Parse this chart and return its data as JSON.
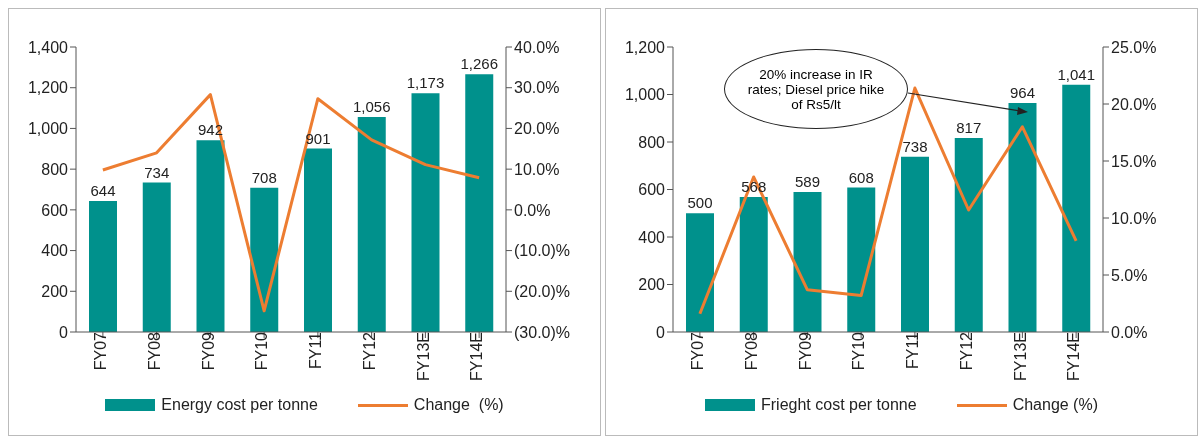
{
  "chart_data": [
    {
      "type": "bar",
      "categories": [
        "FY07",
        "FY08",
        "FY09",
        "FY10",
        "FY11",
        "FY12",
        "FY13E",
        "FY14E"
      ],
      "series": [
        {
          "name": "Energy cost per tonne",
          "color": "#00918c",
          "values": [
            644,
            734,
            942,
            708,
            901,
            1056,
            1173,
            1266
          ],
          "value_labels": [
            "644",
            "734",
            "942",
            "708",
            "901",
            "1,056",
            "1,173",
            "1,266"
          ]
        },
        {
          "name": "Change  (%)",
          "type": "line",
          "axis": "y2",
          "color": "#ed7d31",
          "values": [
            9.8,
            14.0,
            28.3,
            -24.8,
            27.3,
            17.2,
            11.1,
            7.9
          ]
        }
      ],
      "ylim": [
        0,
        1400
      ],
      "yticks": [
        0,
        200,
        400,
        {
          "value": 600,
          "label": "600"
        },
        {
          "value": 800,
          "label": "800"
        },
        {
          "value": 1000,
          "label": "1,000"
        },
        {
          "value": 1200,
          "label": "1,200"
        },
        {
          "value": 1400,
          "label": "1,400"
        }
      ],
      "y2lim": [
        -30,
        40
      ],
      "y2ticks": [
        {
          "value": -30,
          "label": "(30.0)%"
        },
        {
          "value": -20,
          "label": "(20.0)%"
        },
        {
          "value": -10,
          "label": "(10.0)%"
        },
        {
          "value": 0,
          "label": "0.0%"
        },
        {
          "value": 10,
          "label": "10.0%"
        },
        {
          "value": 20,
          "label": "20.0%"
        },
        {
          "value": 30,
          "label": "30.0%"
        },
        {
          "value": 40,
          "label": "40.0%"
        }
      ],
      "grid": false,
      "legend": "bottom",
      "marker": "none",
      "line_style": "solid"
    },
    {
      "type": "bar",
      "categories": [
        "FY07",
        "FY08",
        "FY09",
        "FY10",
        "FY11",
        "FY12",
        "FY13E",
        "FY14E"
      ],
      "series": [
        {
          "name": "Frieght cost per tonne",
          "color": "#00918c",
          "values": [
            500,
            568,
            589,
            608,
            738,
            817,
            964,
            1041
          ],
          "value_labels": [
            "500",
            "568",
            "589",
            "608",
            "738",
            "817",
            "964",
            "1,041"
          ]
        },
        {
          "name": "Change (%)",
          "type": "line",
          "axis": "y2",
          "color": "#ed7d31",
          "values": [
            1.6,
            13.6,
            3.7,
            3.2,
            21.4,
            10.7,
            18.0,
            8.0
          ]
        }
      ],
      "ylim": [
        0,
        1200
      ],
      "yticks": [
        0,
        200,
        400,
        600,
        800,
        {
          "value": 1000,
          "label": "1,000"
        },
        {
          "value": 1200,
          "label": "1,200"
        }
      ],
      "y2lim": [
        0,
        25
      ],
      "y2ticks": [
        {
          "value": 0,
          "label": "0.0%"
        },
        {
          "value": 5,
          "label": "5.0%"
        },
        {
          "value": 10,
          "label": "10.0%"
        },
        {
          "value": 15,
          "label": "15.0%"
        },
        {
          "value": 20,
          "label": "20.0%"
        },
        {
          "value": 25,
          "label": "25.0%"
        }
      ],
      "annotations": [
        "20% increase in IR rates; Diesel price hike of Rs5/lt"
      ],
      "grid": false,
      "legend": "bottom",
      "marker": "none",
      "line_style": "solid"
    }
  ]
}
